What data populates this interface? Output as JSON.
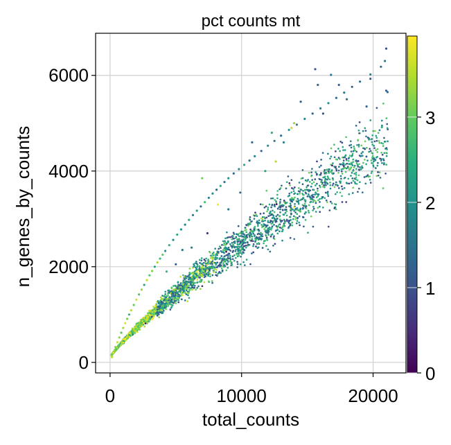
{
  "chart_data": {
    "type": "scatter",
    "title": "pct counts mt",
    "xlabel": "total_counts",
    "ylabel": "n_genes_by_counts",
    "xlim": [
      -1100,
      22500
    ],
    "ylim": [
      -220,
      6880
    ],
    "xticks": [
      0,
      10000,
      20000
    ],
    "xtick_labels": [
      "0",
      "10000",
      "20000"
    ],
    "yticks": [
      0,
      2000,
      4000,
      6000
    ],
    "ytick_labels": [
      "0",
      "2000",
      "4000",
      "6000"
    ],
    "grid": true,
    "colormap": "viridis",
    "colorbar": {
      "label": "pct_counts_mt",
      "range": [
        0,
        3.95
      ],
      "ticks": [
        0,
        1,
        2,
        3
      ],
      "tick_labels": [
        "0",
        "1",
        "2",
        "3"
      ]
    },
    "points": [
      [
        150,
        110,
        3.5
      ],
      [
        250,
        200,
        3.7
      ],
      [
        400,
        320,
        3.2
      ],
      [
        550,
        420,
        3.6
      ],
      [
        700,
        520,
        3.3
      ],
      [
        850,
        620,
        2.9
      ],
      [
        1000,
        720,
        3.4
      ],
      [
        1150,
        820,
        3.8
      ],
      [
        1300,
        910,
        3.1
      ],
      [
        1450,
        1000,
        2.6
      ],
      [
        1600,
        1090,
        3.5
      ],
      [
        1800,
        1200,
        3.0
      ],
      [
        2000,
        1310,
        3.7
      ],
      [
        2200,
        1420,
        2.8
      ],
      [
        2400,
        1520,
        3.3
      ],
      [
        2600,
        1620,
        2.4
      ],
      [
        2800,
        1720,
        3.6
      ],
      [
        3000,
        1820,
        2.9
      ],
      [
        3200,
        1910,
        3.2
      ],
      [
        3400,
        2000,
        2.2
      ],
      [
        3600,
        2090,
        3.4
      ],
      [
        3800,
        2170,
        2.7
      ],
      [
        4000,
        2250,
        3.0
      ],
      [
        4200,
        2330,
        2.1
      ],
      [
        4500,
        2450,
        2.6
      ],
      [
        4800,
        2560,
        1.9
      ],
      [
        5100,
        2670,
        2.4
      ],
      [
        5400,
        2780,
        2.0
      ],
      [
        5700,
        2880,
        1.7
      ],
      [
        6000,
        2980,
        2.3
      ],
      [
        6300,
        3080,
        1.6
      ],
      [
        6600,
        3170,
        2.2
      ],
      [
        6900,
        3260,
        1.5
      ],
      [
        7200,
        3350,
        2.8
      ],
      [
        7500,
        3440,
        1.8
      ],
      [
        7800,
        3530,
        2.0
      ],
      [
        8100,
        3610,
        1.4
      ],
      [
        8400,
        3690,
        2.5
      ],
      [
        8700,
        3770,
        1.6
      ],
      [
        9000,
        3850,
        2.1
      ],
      [
        9400,
        3950,
        1.3
      ],
      [
        9800,
        4040,
        1.9
      ],
      [
        10200,
        4130,
        2.3
      ],
      [
        10600,
        4220,
        1.5
      ],
      [
        11000,
        4310,
        1.8
      ],
      [
        11500,
        4420,
        1.2
      ],
      [
        12000,
        4530,
        2.0
      ],
      [
        12500,
        4630,
        1.6
      ],
      [
        13000,
        4740,
        1.4
      ],
      [
        13600,
        4860,
        2.2
      ],
      [
        14200,
        4970,
        1.5
      ],
      [
        14800,
        5090,
        1.8
      ],
      [
        15400,
        5200,
        1.3
      ],
      [
        16000,
        5310,
        1.7
      ],
      [
        16600,
        5420,
        1.9
      ],
      [
        17200,
        5530,
        1.4
      ],
      [
        17800,
        5640,
        1.6
      ],
      [
        18400,
        5760,
        1.2
      ],
      [
        19000,
        5870,
        1.5
      ],
      [
        19800,
        6020,
        1.8
      ],
      [
        20600,
        6180,
        1.3
      ],
      [
        21000,
        6560,
        1.0
      ],
      [
        20900,
        6300,
        1.6
      ],
      [
        21100,
        5650,
        1.4
      ],
      [
        21000,
        5680,
        1.2
      ],
      [
        19800,
        5930,
        1.1
      ],
      [
        19500,
        5350,
        1.3
      ],
      [
        17400,
        5800,
        1.2
      ],
      [
        18000,
        5500,
        1.4
      ],
      [
        16800,
        6010,
        1.5
      ],
      [
        15800,
        5800,
        1.3
      ],
      [
        15600,
        6130,
        1.1
      ],
      [
        14500,
        5450,
        1.2
      ],
      [
        13800,
        4900,
        3.6
      ],
      [
        12600,
        4200,
        3.5
      ],
      [
        11800,
        4000,
        2.2
      ],
      [
        9900,
        3550,
        1.4
      ],
      [
        9000,
        3200,
        1.6
      ],
      [
        8200,
        3300,
        3.9
      ],
      [
        7400,
        2700,
        0.7
      ],
      [
        6200,
        2400,
        1.8
      ],
      [
        5000,
        2050,
        1.2
      ],
      [
        4300,
        1900,
        2.6
      ],
      [
        5500,
        2350,
        1.5
      ],
      [
        13200,
        4600,
        1.7
      ],
      [
        14000,
        5000,
        3.3
      ],
      [
        12300,
        4800,
        2.5
      ],
      [
        10800,
        4600,
        1.3
      ],
      [
        7000,
        3850,
        3.1
      ],
      [
        16200,
        5200,
        1.0
      ]
    ]
  }
}
